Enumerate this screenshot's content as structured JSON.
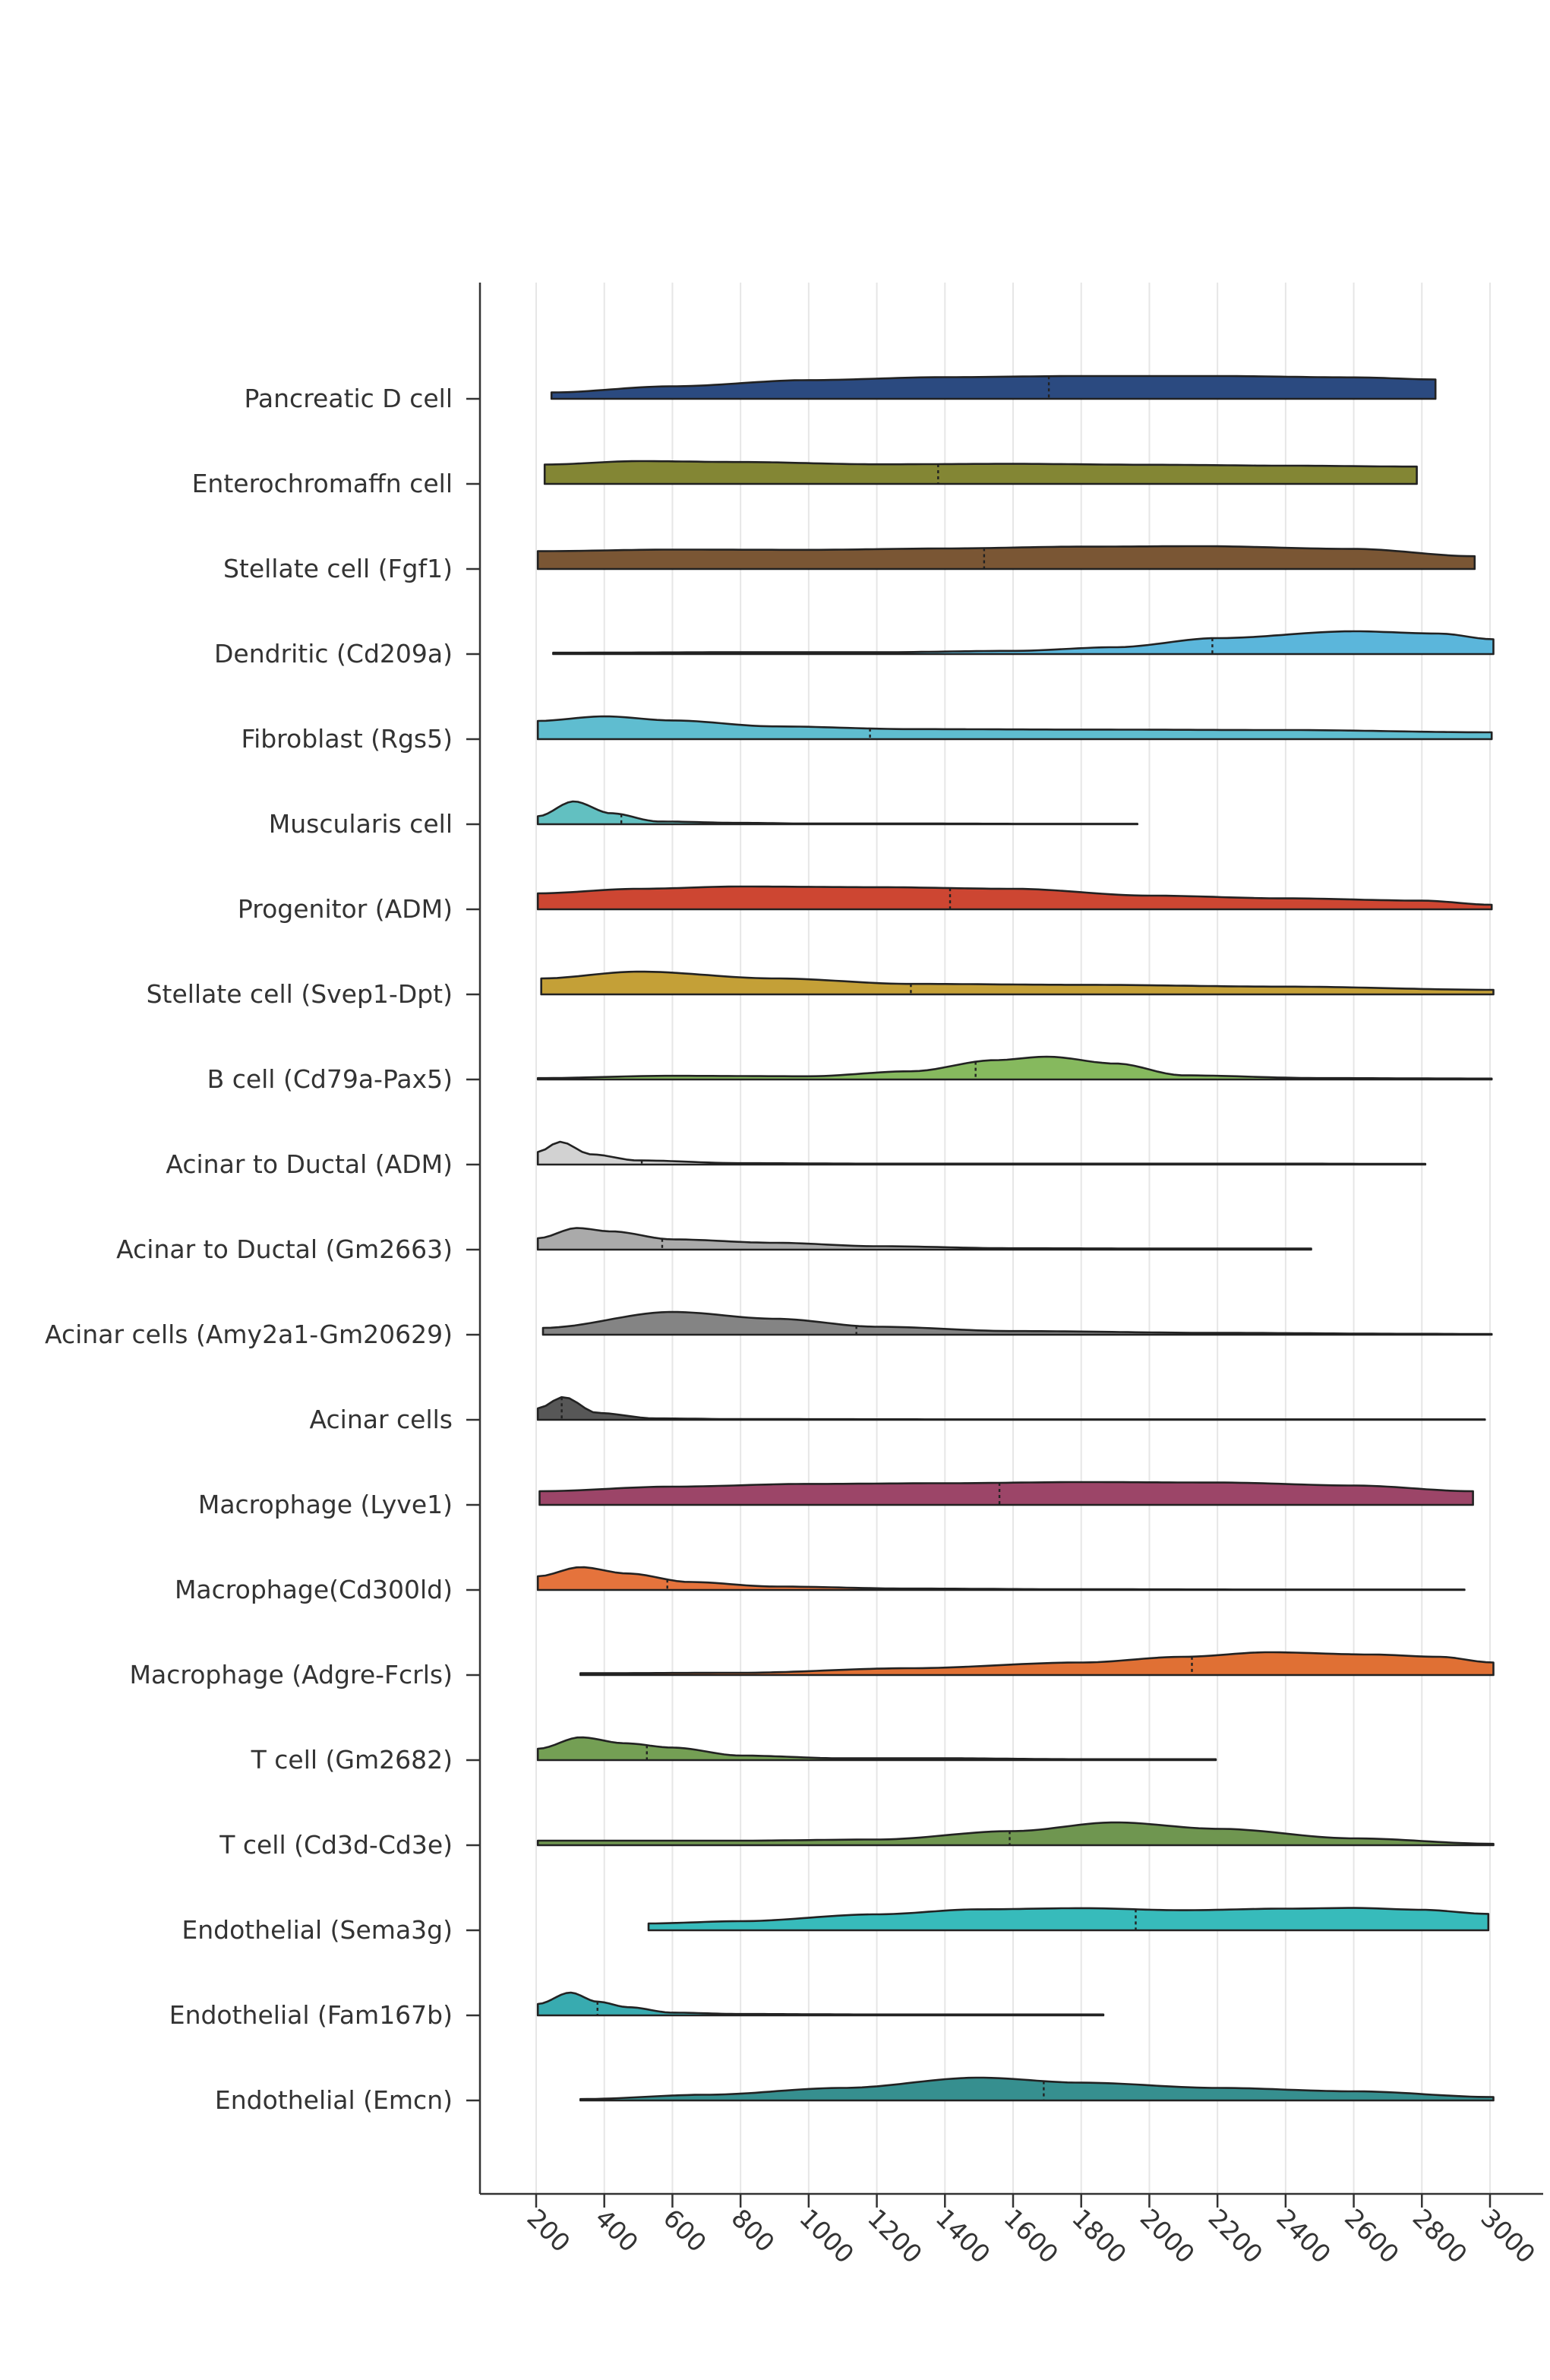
{
  "chart_data": {
    "type": "ridgeline",
    "title": "",
    "xlabel": "",
    "ylabel": "",
    "xlim": [
      120,
      3080
    ],
    "x_ticks": [
      200,
      400,
      600,
      800,
      1000,
      1200,
      1400,
      1600,
      1800,
      2000,
      2200,
      2400,
      2600,
      2800,
      3000
    ],
    "x_tick_labels": [
      "200",
      "400",
      "600",
      "800",
      "1000",
      "1200",
      "1400",
      "1600",
      "1800",
      "2000",
      "2200",
      "2400",
      "2600",
      "2800",
      "3000"
    ],
    "grid": "vertical",
    "legend": "none",
    "categories": [
      "Pancreatic D cell",
      "Enterochromaffn cell",
      "Stellate cell (Fgf1)",
      "Dendritic (Cd209a)",
      "Fibroblast (Rgs5)",
      "Muscularis cell",
      "Progenitor (ADM)",
      "Stellate cell (Svep1-Dpt)",
      "B cell (Cd79a-Pax5)",
      "Acinar to Ductal (ADM)",
      "Acinar to Ductal (Gm2663)",
      "Acinar cells (Amy2a1-Gm20629)",
      "Acinar cells",
      "Macrophage (Lyve1)",
      "Macrophage(Cd300ld)",
      "Macrophage (Adgre-Fcrls)",
      "T cell (Gm2682)",
      "T cell (Cd3d-Cd3e)",
      "Endothelial (Sema3g)",
      "Endothelial (Fam167b)",
      "Endothelial (Emcn)"
    ],
    "series": [
      {
        "color": "#2b4a80",
        "min": 245,
        "max": 2840,
        "median": 1705,
        "density": [
          [
            245,
            0.28
          ],
          [
            600,
            0.55
          ],
          [
            1000,
            0.82
          ],
          [
            1400,
            0.95
          ],
          [
            1800,
            1.0
          ],
          [
            2200,
            1.0
          ],
          [
            2600,
            0.94
          ],
          [
            2840,
            0.85
          ]
        ]
      },
      {
        "color": "#838634",
        "min": 225,
        "max": 2785,
        "median": 1380,
        "density": [
          [
            225,
            0.85
          ],
          [
            500,
            1.0
          ],
          [
            800,
            0.96
          ],
          [
            1200,
            0.86
          ],
          [
            1600,
            0.88
          ],
          [
            2000,
            0.84
          ],
          [
            2400,
            0.8
          ],
          [
            2785,
            0.76
          ]
        ]
      },
      {
        "color": "#7a5634",
        "min": 205,
        "max": 2955,
        "median": 1515,
        "density": [
          [
            205,
            0.78
          ],
          [
            600,
            0.85
          ],
          [
            1000,
            0.84
          ],
          [
            1400,
            0.9
          ],
          [
            1800,
            0.98
          ],
          [
            2150,
            1.0
          ],
          [
            2600,
            0.88
          ],
          [
            2955,
            0.56
          ]
        ]
      },
      {
        "color": "#5bb6db",
        "min": 250,
        "max": 3010,
        "median": 2185,
        "density": [
          [
            250,
            0.06
          ],
          [
            800,
            0.08
          ],
          [
            1200,
            0.08
          ],
          [
            1600,
            0.14
          ],
          [
            1900,
            0.3
          ],
          [
            2200,
            0.7
          ],
          [
            2600,
            1.0
          ],
          [
            2850,
            0.9
          ],
          [
            3010,
            0.65
          ]
        ]
      },
      {
        "color": "#5fbdd0",
        "min": 205,
        "max": 3005,
        "median": 1180,
        "density": [
          [
            205,
            0.8
          ],
          [
            400,
            1.0
          ],
          [
            600,
            0.82
          ],
          [
            900,
            0.56
          ],
          [
            1300,
            0.44
          ],
          [
            1800,
            0.42
          ],
          [
            2400,
            0.4
          ],
          [
            3005,
            0.3
          ]
        ]
      },
      {
        "color": "#62c0c1",
        "min": 205,
        "max": 1965,
        "median": 450,
        "density": [
          [
            205,
            0.35
          ],
          [
            310,
            1.0
          ],
          [
            420,
            0.48
          ],
          [
            560,
            0.12
          ],
          [
            800,
            0.06
          ],
          [
            1000,
            0.03
          ],
          [
            1300,
            0.03
          ],
          [
            1700,
            0.02
          ],
          [
            1965,
            0.02
          ]
        ]
      },
      {
        "color": "#cd4632",
        "min": 205,
        "max": 3005,
        "median": 1415,
        "density": [
          [
            205,
            0.7
          ],
          [
            500,
            0.9
          ],
          [
            800,
            1.0
          ],
          [
            1200,
            0.97
          ],
          [
            1600,
            0.9
          ],
          [
            2000,
            0.6
          ],
          [
            2400,
            0.48
          ],
          [
            2800,
            0.38
          ],
          [
            3005,
            0.2
          ]
        ]
      },
      {
        "color": "#c4a037",
        "min": 215,
        "max": 3010,
        "median": 1300,
        "density": [
          [
            215,
            0.7
          ],
          [
            500,
            1.0
          ],
          [
            900,
            0.7
          ],
          [
            1300,
            0.46
          ],
          [
            1800,
            0.42
          ],
          [
            2400,
            0.34
          ],
          [
            3010,
            0.2
          ]
        ]
      },
      {
        "color": "#86b95e",
        "min": 205,
        "max": 3005,
        "median": 1490,
        "density": [
          [
            205,
            0.06
          ],
          [
            600,
            0.16
          ],
          [
            1000,
            0.14
          ],
          [
            1300,
            0.36
          ],
          [
            1550,
            0.85
          ],
          [
            1700,
            1.0
          ],
          [
            1900,
            0.7
          ],
          [
            2100,
            0.18
          ],
          [
            2500,
            0.06
          ],
          [
            3005,
            0.04
          ]
        ]
      },
      {
        "color": "#d2d2d2",
        "min": 205,
        "max": 2810,
        "median": 510,
        "density": [
          [
            205,
            0.55
          ],
          [
            270,
            1.0
          ],
          [
            360,
            0.45
          ],
          [
            500,
            0.18
          ],
          [
            800,
            0.06
          ],
          [
            1200,
            0.04
          ],
          [
            1800,
            0.04
          ],
          [
            2400,
            0.04
          ],
          [
            2810,
            0.03
          ]
        ]
      },
      {
        "color": "#aaaaaa",
        "min": 205,
        "max": 2475,
        "median": 570,
        "density": [
          [
            205,
            0.5
          ],
          [
            320,
            0.95
          ],
          [
            420,
            0.8
          ],
          [
            600,
            0.45
          ],
          [
            900,
            0.3
          ],
          [
            1200,
            0.15
          ],
          [
            1600,
            0.06
          ],
          [
            2000,
            0.05
          ],
          [
            2475,
            0.05
          ]
        ]
      },
      {
        "color": "#848484",
        "min": 220,
        "max": 3005,
        "median": 1140,
        "density": [
          [
            220,
            0.3
          ],
          [
            600,
            1.0
          ],
          [
            900,
            0.7
          ],
          [
            1200,
            0.35
          ],
          [
            1600,
            0.16
          ],
          [
            2200,
            0.08
          ],
          [
            2800,
            0.04
          ],
          [
            3005,
            0.03
          ]
        ]
      },
      {
        "color": "#575757",
        "min": 205,
        "max": 2985,
        "median": 275,
        "density": [
          [
            205,
            0.5
          ],
          [
            280,
            1.0
          ],
          [
            380,
            0.3
          ],
          [
            550,
            0.06
          ],
          [
            800,
            0.03
          ],
          [
            1500,
            0.02
          ],
          [
            2200,
            0.02
          ],
          [
            2985,
            0.02
          ]
        ]
      },
      {
        "color": "#9c4568",
        "min": 210,
        "max": 2950,
        "median": 1560,
        "density": [
          [
            210,
            0.6
          ],
          [
            600,
            0.8
          ],
          [
            1000,
            0.92
          ],
          [
            1400,
            0.95
          ],
          [
            1800,
            1.0
          ],
          [
            2200,
            0.98
          ],
          [
            2600,
            0.85
          ],
          [
            2950,
            0.6
          ]
        ]
      },
      {
        "color": "#e5733c",
        "min": 205,
        "max": 2925,
        "median": 585,
        "density": [
          [
            205,
            0.6
          ],
          [
            330,
            1.0
          ],
          [
            470,
            0.72
          ],
          [
            650,
            0.35
          ],
          [
            900,
            0.15
          ],
          [
            1300,
            0.06
          ],
          [
            1800,
            0.03
          ],
          [
            2400,
            0.02
          ],
          [
            2925,
            0.02
          ]
        ]
      },
      {
        "color": "#e07034",
        "min": 330,
        "max": 3010,
        "median": 2125,
        "density": [
          [
            330,
            0.08
          ],
          [
            800,
            0.1
          ],
          [
            1300,
            0.3
          ],
          [
            1800,
            0.55
          ],
          [
            2100,
            0.8
          ],
          [
            2350,
            1.0
          ],
          [
            2650,
            0.9
          ],
          [
            2850,
            0.8
          ],
          [
            3010,
            0.55
          ]
        ]
      },
      {
        "color": "#749f54",
        "min": 205,
        "max": 2195,
        "median": 525,
        "density": [
          [
            205,
            0.5
          ],
          [
            330,
            1.0
          ],
          [
            460,
            0.74
          ],
          [
            600,
            0.55
          ],
          [
            800,
            0.2
          ],
          [
            1100,
            0.08
          ],
          [
            1400,
            0.08
          ],
          [
            1800,
            0.04
          ],
          [
            2195,
            0.04
          ]
        ]
      },
      {
        "color": "#6f9650",
        "min": 205,
        "max": 3010,
        "median": 1590,
        "density": [
          [
            205,
            0.2
          ],
          [
            800,
            0.2
          ],
          [
            1200,
            0.25
          ],
          [
            1600,
            0.62
          ],
          [
            1900,
            1.0
          ],
          [
            2200,
            0.72
          ],
          [
            2600,
            0.3
          ],
          [
            3010,
            0.06
          ]
        ]
      },
      {
        "color": "#37bbbb",
        "min": 530,
        "max": 2995,
        "median": 1960,
        "density": [
          [
            530,
            0.3
          ],
          [
            800,
            0.4
          ],
          [
            1200,
            0.7
          ],
          [
            1500,
            0.92
          ],
          [
            1800,
            0.97
          ],
          [
            2100,
            0.88
          ],
          [
            2400,
            0.95
          ],
          [
            2600,
            0.98
          ],
          [
            2800,
            0.9
          ],
          [
            2995,
            0.72
          ]
        ]
      },
      {
        "color": "#38abb0",
        "min": 205,
        "max": 1865,
        "median": 380,
        "density": [
          [
            205,
            0.5
          ],
          [
            300,
            1.0
          ],
          [
            380,
            0.6
          ],
          [
            470,
            0.36
          ],
          [
            600,
            0.12
          ],
          [
            800,
            0.06
          ],
          [
            1200,
            0.04
          ],
          [
            1600,
            0.04
          ],
          [
            1865,
            0.04
          ]
        ]
      },
      {
        "color": "#368f8f",
        "min": 330,
        "max": 3010,
        "median": 1690,
        "density": [
          [
            330,
            0.06
          ],
          [
            700,
            0.25
          ],
          [
            1100,
            0.55
          ],
          [
            1500,
            1.0
          ],
          [
            1800,
            0.78
          ],
          [
            2200,
            0.55
          ],
          [
            2600,
            0.4
          ],
          [
            3010,
            0.15
          ]
        ]
      }
    ]
  }
}
